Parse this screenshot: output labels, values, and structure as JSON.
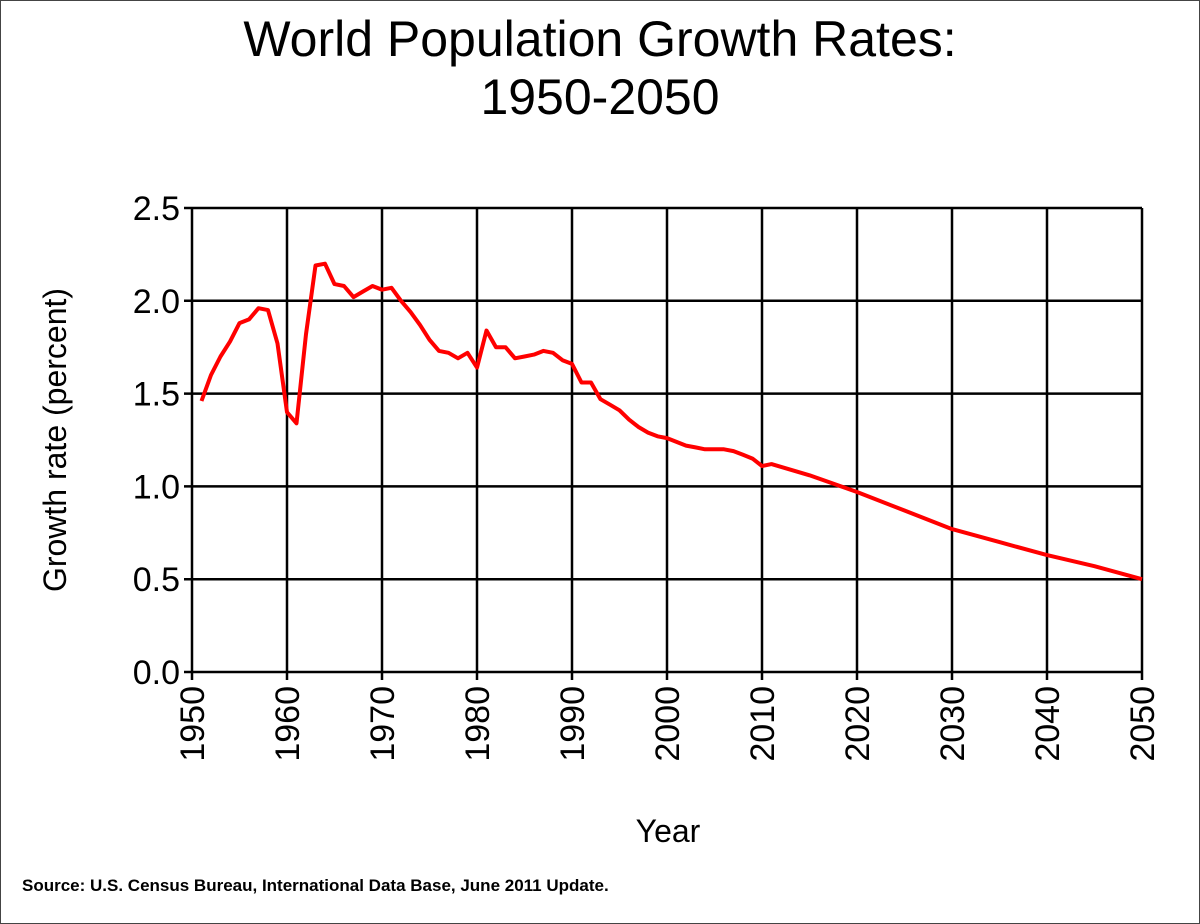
{
  "chart_data": {
    "type": "line",
    "title_line1": "World Population Growth Rates:",
    "title_line2": "1950-2050",
    "xlabel": "Year",
    "ylabel": "Growth rate  (percent)",
    "xlim": [
      1950,
      2050
    ],
    "ylim": [
      0,
      2.5
    ],
    "x_ticks": [
      "1950",
      "1960",
      "1970",
      "1980",
      "1990",
      "2000",
      "2010",
      "2020",
      "2030",
      "2040",
      "2050"
    ],
    "y_ticks": [
      "0.0",
      "0.5",
      "1.0",
      "1.5",
      "2.0",
      "2.5"
    ],
    "grid": true,
    "line_color": "#ff0000",
    "x": [
      1951,
      1952,
      1953,
      1954,
      1955,
      1956,
      1957,
      1958,
      1959,
      1960,
      1961,
      1962,
      1963,
      1964,
      1965,
      1966,
      1967,
      1968,
      1969,
      1970,
      1971,
      1972,
      1973,
      1974,
      1975,
      1976,
      1977,
      1978,
      1979,
      1980,
      1981,
      1982,
      1983,
      1984,
      1985,
      1986,
      1987,
      1988,
      1989,
      1990,
      1991,
      1992,
      1993,
      1994,
      1995,
      1996,
      1997,
      1998,
      1999,
      2000,
      2001,
      2002,
      2003,
      2004,
      2005,
      2006,
      2007,
      2008,
      2009,
      2010,
      2011,
      2015,
      2020,
      2025,
      2030,
      2035,
      2040,
      2045,
      2050
    ],
    "y": [
      1.46,
      1.6,
      1.7,
      1.78,
      1.88,
      1.9,
      1.96,
      1.95,
      1.77,
      1.4,
      1.34,
      1.82,
      2.19,
      2.2,
      2.09,
      2.08,
      2.02,
      2.05,
      2.08,
      2.06,
      2.07,
      2.0,
      1.94,
      1.87,
      1.79,
      1.73,
      1.72,
      1.69,
      1.72,
      1.64,
      1.84,
      1.75,
      1.75,
      1.69,
      1.7,
      1.71,
      1.73,
      1.72,
      1.68,
      1.66,
      1.56,
      1.56,
      1.47,
      1.44,
      1.41,
      1.36,
      1.32,
      1.29,
      1.27,
      1.26,
      1.24,
      1.22,
      1.21,
      1.2,
      1.2,
      1.2,
      1.19,
      1.17,
      1.15,
      1.11,
      1.12,
      1.06,
      0.97,
      0.87,
      0.77,
      0.7,
      0.63,
      0.57,
      0.5
    ]
  },
  "source": "Source: U.S. Census Bureau, International Data Base, June 2011 Update."
}
